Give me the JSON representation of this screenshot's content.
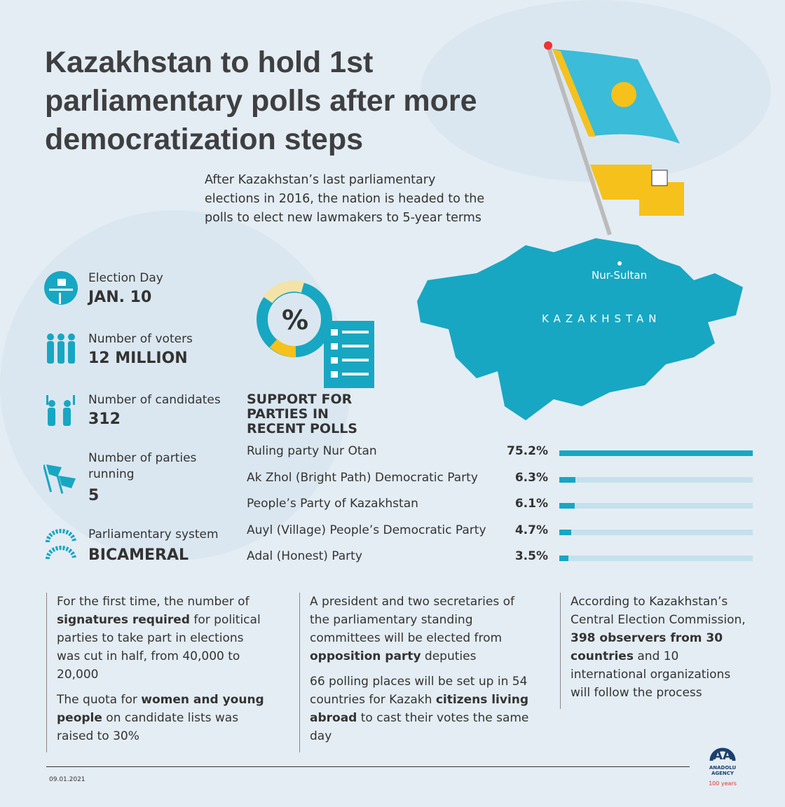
{
  "title": "Kazakhstan to hold 1st parliamentary polls after more democratization steps",
  "intro": "After Kazakhstan’s last parliamentary elections in 2016, the nation is headed to the polls to elect new lawmakers to 5-year terms",
  "stats": [
    {
      "label": "Election Day",
      "value": "JAN. 10",
      "icon": "ballot-box-icon"
    },
    {
      "label": "Number of voters",
      "value": "12 MILLION",
      "icon": "people-icon"
    },
    {
      "label": "Number of candidates",
      "value": "312",
      "icon": "candidates-icon"
    },
    {
      "label": "Number of parties running",
      "value": "5",
      "icon": "flags-icon"
    },
    {
      "label": "Parliamentary system",
      "value": "BICAMERAL",
      "icon": "parliament-icon"
    }
  ],
  "map": {
    "city": "Nur-Sultan",
    "country": "KAZAKHSTAN",
    "poll_icon_symbol": "%"
  },
  "colors": {
    "accent": "#17a7c2",
    "track": "#c5e1ec",
    "flag_blue": "#3bbcd8",
    "flag_yellow": "#f6c11b",
    "title": "#3f3f41",
    "background": "#e4edf4"
  },
  "chart_data": {
    "type": "bar",
    "title": "SUPPORT FOR PARTIES IN RECENT POLLS",
    "categories": [
      "Ruling party Nur Otan",
      "Ak Zhol  (Bright Path)  Democratic Party",
      "People’s Party of Kazakhstan",
      "Auyl (Village) People’s Democratic Party",
      "Adal (Honest) Party"
    ],
    "values": [
      75.2,
      6.3,
      6.1,
      4.7,
      3.5
    ],
    "labels": [
      "75.2%",
      "6.3%",
      "6.1%",
      "4.7%",
      "3.5%"
    ],
    "orientation": "horizontal",
    "xlim": [
      0,
      75.2
    ]
  },
  "columns": [
    {
      "paragraphs": [
        [
          {
            "t": "For the first time, the number of "
          },
          {
            "t": "signatures required",
            "b": true
          },
          {
            "t": " for political parties to take part in elections was cut in half, from 40,000 to 20,000"
          }
        ],
        [
          {
            "t": "The quota for "
          },
          {
            "t": "women and young people",
            "b": true
          },
          {
            "t": " on candidate lists was raised to 30%"
          }
        ]
      ]
    },
    {
      "paragraphs": [
        [
          {
            "t": "A president and two secretaries of the parliamentary standing committees will be elected from "
          },
          {
            "t": "opposition party",
            "b": true
          },
          {
            "t": " deputies"
          }
        ],
        [
          {
            "t": "66 polling places will be set up in 54 countries for Kazakh "
          },
          {
            "t": "citizens living abroad",
            "b": true
          },
          {
            "t": " to cast their votes the same day"
          }
        ]
      ]
    },
    {
      "paragraphs": [
        [
          {
            "t": "According to Kazakhstan’s Central Election Commission, "
          },
          {
            "t": "398 observers from 30 countries",
            "b": true
          },
          {
            "t": " and 10 international organizations will follow the process"
          }
        ]
      ]
    }
  ],
  "footer": {
    "date": "09.01.2021",
    "logo_text": "ANADOLU AGENCY",
    "logo_sub": "100 years"
  }
}
